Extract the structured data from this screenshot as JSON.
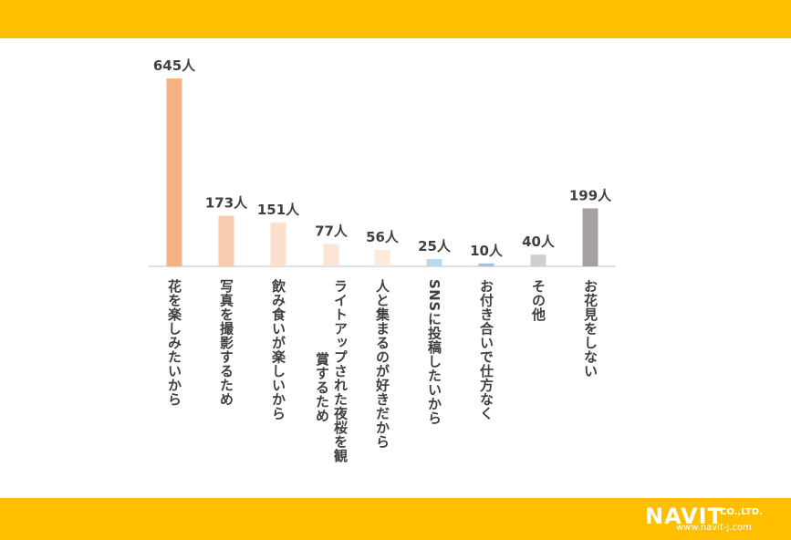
{
  "chart_data": {
    "type": "bar",
    "categories": [
      "花を楽しみたいから",
      "写真を撮影するため",
      "飲み食いが楽しいから",
      "ライトアップされた夜桜を観賞するため",
      "人と集まるのが好きだから",
      "SNSに投稿したいから",
      "お付き合いで仕方なく",
      "その他",
      "お花見をしない"
    ],
    "label_columns": [
      [
        "花を楽しみたいから"
      ],
      [
        "写真を撮影するため"
      ],
      [
        "飲み食いが楽しいから"
      ],
      [
        "ライトアップされた夜桜を観",
        "賞するため"
      ],
      [
        "人と集まるのが好きだから"
      ],
      [
        "SNSに投稿したいから"
      ],
      [
        "お付き合いで仕方なく"
      ],
      [
        "その他"
      ],
      [
        "お花見をしない"
      ]
    ],
    "values": [
      645,
      173,
      151,
      77,
      56,
      25,
      10,
      40,
      199
    ],
    "value_labels": [
      "645人",
      "173人",
      "151人",
      "77人",
      "56人",
      "25人",
      "10人",
      "40人",
      "199人"
    ],
    "colors": [
      "#f4b183",
      "#f8cbad",
      "#fbe0cf",
      "#fce5d6",
      "#fdeada",
      "#bdd7ee",
      "#9dc3e6",
      "#d0cece",
      "#a5a0a0"
    ],
    "ylim": [
      0,
      700
    ],
    "grid": false,
    "legend": "none"
  },
  "branding": {
    "logo_text": "NAVIT",
    "logo_suffix": "CO.,LTD.",
    "url": "www.navit-j.com"
  }
}
